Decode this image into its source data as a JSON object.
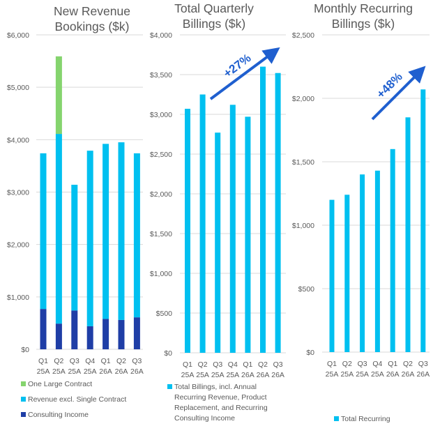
{
  "chart_data": [
    {
      "type": "bar",
      "stacked": true,
      "title": [
        "New Revenue",
        "Bookings ($k)"
      ],
      "categories": [
        [
          "Q1",
          "25A"
        ],
        [
          "Q2",
          "25A"
        ],
        [
          "Q3",
          "25A"
        ],
        [
          "Q4",
          "25A"
        ],
        [
          "Q1",
          "26A"
        ],
        [
          "Q2",
          "26A"
        ],
        [
          "Q3",
          "26A"
        ]
      ],
      "ylim": [
        0,
        6000
      ],
      "yticks": [
        0,
        1000,
        2000,
        3000,
        4000,
        5000,
        6000
      ],
      "ytick_labels": [
        "$0",
        "$1,000",
        "$2,000",
        "$3,000",
        "$4,000",
        "$5,000",
        "$6,000"
      ],
      "grid": true,
      "series": [
        {
          "name": "Consulting Income",
          "color": "#1f3ea6",
          "values": [
            770,
            490,
            740,
            440,
            580,
            560,
            610
          ]
        },
        {
          "name": "Revenue excl. Single Contract",
          "color": "#00c0f0",
          "values": [
            2970,
            3620,
            2400,
            3350,
            3340,
            3390,
            3130
          ]
        },
        {
          "name": "One Large Contract",
          "color": "#85d46e",
          "values": [
            0,
            1480,
            0,
            0,
            0,
            0,
            0
          ]
        }
      ],
      "legend": {
        "placement": "bottom",
        "items": [
          {
            "label": "One Large Contract",
            "color": "#85d46e"
          },
          {
            "label": "Revenue excl. Single Contract",
            "color": "#00c0f0"
          },
          {
            "label": "Consulting Income",
            "color": "#1f3ea6"
          }
        ]
      }
    },
    {
      "type": "bar",
      "title": [
        "Total Quarterly",
        "Billings ($k)"
      ],
      "categories": [
        [
          "Q1",
          "25A"
        ],
        [
          "Q2",
          "25A"
        ],
        [
          "Q3",
          "25A"
        ],
        [
          "Q4",
          "25A"
        ],
        [
          "Q1",
          "26A"
        ],
        [
          "Q2",
          "26A"
        ],
        [
          "Q3",
          "26A"
        ]
      ],
      "ylim": [
        0,
        4000
      ],
      "yticks": [
        0,
        500,
        1000,
        1500,
        2000,
        2500,
        3000,
        3500,
        4000
      ],
      "ytick_labels": [
        "$0",
        "$500",
        "$1,000",
        "$1,500",
        "$2,000",
        "$2,500",
        "$3,000",
        "$3,500",
        "$4,000"
      ],
      "grid": true,
      "series": [
        {
          "name": "Total Billings, incl. Annual Recurring Revenue, Product Replacement, and Recurring Consulting Income",
          "color": "#00c0f0",
          "values": [
            3070,
            3250,
            2770,
            3120,
            2970,
            3600,
            3520
          ]
        }
      ],
      "annotation": {
        "text": "+27%",
        "color": "#1f5fcf"
      },
      "legend": {
        "placement": "bottom",
        "items": [
          {
            "label_lines": [
              "Total Billings, incl. Annual",
              "Recurring Revenue, Product",
              "Replacement, and Recurring",
              "Consulting Income"
            ],
            "color": "#00c0f0"
          }
        ]
      }
    },
    {
      "type": "bar",
      "title": [
        "Monthly Recurring",
        "Billings ($k)"
      ],
      "categories": [
        [
          "Q1",
          "25A"
        ],
        [
          "Q2",
          "25A"
        ],
        [
          "Q3",
          "25A"
        ],
        [
          "Q4",
          "25A"
        ],
        [
          "Q1",
          "26A"
        ],
        [
          "Q2",
          "26A"
        ],
        [
          "Q3",
          "26A"
        ]
      ],
      "ylim": [
        0,
        2500
      ],
      "yticks": [
        0,
        500,
        1000,
        1500,
        2000,
        2500
      ],
      "ytick_labels": [
        "$0",
        "$500",
        "$1,000",
        "$1,500",
        "$2,000",
        "$2,500"
      ],
      "grid": true,
      "series": [
        {
          "name": "Total Recurring",
          "color": "#00c0f0",
          "values": [
            1200,
            1240,
            1400,
            1430,
            1600,
            1850,
            2070
          ]
        }
      ],
      "annotation": {
        "text": "+48%",
        "color": "#1f5fcf"
      },
      "legend": {
        "placement": "bottom",
        "items": [
          {
            "label": "Total Recurring",
            "color": "#00c0f0"
          }
        ]
      }
    }
  ]
}
